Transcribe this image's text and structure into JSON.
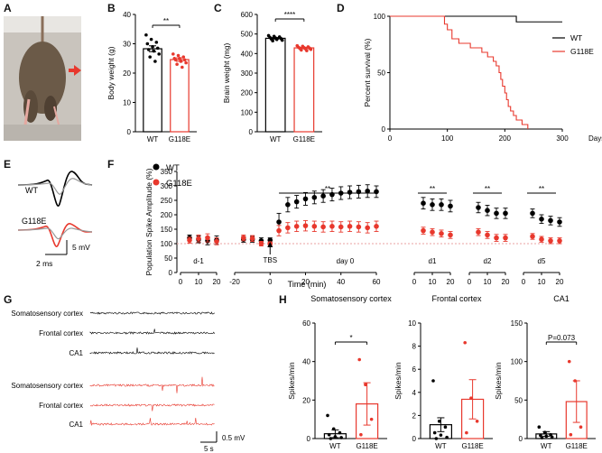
{
  "colors": {
    "wt": "#000000",
    "g118e": "#e8382d",
    "photo_bg": "#c9c4bd",
    "mouse": "#6b5a48"
  },
  "panels": {
    "A": "A",
    "B": "B",
    "C": "C",
    "D": "D",
    "E": "E",
    "F": "F",
    "G": "G",
    "H": "H"
  },
  "photo": {
    "alt": "photo of mouse held by tail with hindlimb clasping",
    "icon": "red-arrow-icon"
  },
  "chart_data": [
    {
      "id": "B",
      "type": "bar",
      "title": "",
      "ylabel": "Body weight (g)",
      "categories": [
        "WT",
        "G118E"
      ],
      "values": [
        28.3,
        24.6
      ],
      "errors": [
        1.0,
        0.6
      ],
      "ylim": [
        0,
        40
      ],
      "yticks": [
        0,
        10,
        20,
        30,
        40
      ],
      "significance": "**",
      "points": [
        [
          33,
          31.5,
          30.5,
          30,
          29,
          28.5,
          28,
          27.5,
          26.5,
          25.5,
          24
        ],
        [
          26.5,
          26,
          25.5,
          25,
          25,
          24.5,
          24.5,
          24,
          23.5,
          23,
          22
        ]
      ]
    },
    {
      "id": "C",
      "type": "bar",
      "title": "",
      "ylabel": "Brain weight (mg)",
      "categories": [
        "WT",
        "G118E"
      ],
      "values": [
        478,
        429
      ],
      "errors": [
        4,
        3
      ],
      "ylim": [
        0,
        600
      ],
      "yticks": [
        0,
        100,
        200,
        300,
        400,
        500,
        600
      ],
      "significance": "****",
      "points": [
        [
          492,
          488,
          485,
          482,
          480,
          477,
          475,
          472,
          468,
          465
        ],
        [
          440,
          437,
          434,
          432,
          430,
          428,
          426,
          424,
          421,
          418,
          415
        ]
      ]
    },
    {
      "id": "D",
      "type": "line",
      "title": "",
      "ylabel": "Percent survival (%)",
      "xlabel": "Days",
      "xlim": [
        0,
        300
      ],
      "xticks": [
        0,
        100,
        200,
        300
      ],
      "ylim": [
        0,
        100
      ],
      "yticks": [
        0,
        50,
        100
      ],
      "legend": [
        "WT",
        "G118E"
      ],
      "legend_position": "right",
      "series": [
        {
          "name": "WT",
          "x": [
            0,
            220,
            220,
            300
          ],
          "y": [
            100,
            100,
            95,
            95
          ]
        },
        {
          "name": "G118E",
          "x": [
            0,
            90,
            95,
            100,
            108,
            120,
            140,
            160,
            170,
            180,
            185,
            190,
            193,
            196,
            200,
            203,
            206,
            210,
            215,
            220,
            230,
            240
          ],
          "y": [
            100,
            100,
            93,
            88,
            80,
            76,
            72,
            68,
            64,
            60,
            56,
            50,
            44,
            38,
            32,
            26,
            20,
            16,
            12,
            8,
            4,
            0
          ]
        }
      ]
    },
    {
      "id": "F",
      "type": "scatter",
      "title": "",
      "ylabel": "Population Spike Amplitude (%)",
      "xlabel": "Time (min)",
      "legend": [
        "WT",
        "G118E"
      ],
      "legend_position": "top-left",
      "ylim": [
        0,
        350
      ],
      "yticks": [
        0,
        50,
        100,
        150,
        200,
        250,
        300,
        350
      ],
      "baseline": 100,
      "annotation": "TBS",
      "segments": [
        {
          "label": "d-1",
          "xlim": [
            0,
            20
          ],
          "xticks": [
            0,
            10,
            20
          ],
          "x": [
            5,
            10,
            15,
            20
          ],
          "wt": [
            120,
            115,
            110,
            112
          ],
          "wt_err": [
            10,
            12,
            14,
            15
          ],
          "g118e": [
            112,
            118,
            120,
            108
          ],
          "g118e_err": [
            10,
            12,
            14,
            12
          ]
        },
        {
          "label": "day 0",
          "xlim": [
            -20,
            60
          ],
          "xticks": [
            -20,
            0,
            20,
            40,
            60
          ],
          "x": [
            -15,
            -10,
            -5,
            0,
            5,
            10,
            15,
            20,
            25,
            30,
            35,
            40,
            45,
            50,
            55,
            60
          ],
          "wt": [
            115,
            115,
            110,
            112,
            175,
            235,
            245,
            255,
            260,
            265,
            270,
            275,
            278,
            280,
            282,
            280
          ],
          "wt_err": [
            10,
            10,
            10,
            8,
            30,
            25,
            22,
            22,
            22,
            22,
            22,
            22,
            22,
            22,
            22,
            20
          ],
          "g118e": [
            120,
            118,
            100,
            100,
            145,
            155,
            160,
            162,
            160,
            158,
            160,
            158,
            160,
            158,
            155,
            160
          ],
          "g118e_err": [
            10,
            10,
            8,
            6,
            18,
            18,
            18,
            18,
            18,
            18,
            18,
            18,
            18,
            18,
            18,
            18
          ]
        },
        {
          "label": "d1",
          "xlim": [
            0,
            20
          ],
          "xticks": [
            0,
            10,
            20
          ],
          "x": [
            5,
            10,
            15,
            20
          ],
          "wt": [
            240,
            235,
            235,
            230
          ],
          "wt_err": [
            20,
            20,
            20,
            20
          ],
          "g118e": [
            145,
            140,
            135,
            130
          ],
          "g118e_err": [
            12,
            12,
            12,
            12
          ]
        },
        {
          "label": "d2",
          "xlim": [
            0,
            20
          ],
          "xticks": [
            0,
            10,
            20
          ],
          "x": [
            5,
            10,
            15,
            20
          ],
          "wt": [
            225,
            215,
            205,
            205
          ],
          "wt_err": [
            18,
            18,
            18,
            18
          ],
          "g118e": [
            140,
            130,
            120,
            120
          ],
          "g118e_err": [
            12,
            12,
            12,
            12
          ]
        },
        {
          "label": "d5",
          "xlim": [
            0,
            20
          ],
          "xticks": [
            0,
            10,
            20
          ],
          "x": [
            5,
            10,
            15,
            20
          ],
          "wt": [
            205,
            185,
            180,
            175
          ],
          "wt_err": [
            15,
            15,
            15,
            15
          ],
          "g118e": [
            125,
            115,
            110,
            110
          ],
          "g118e_err": [
            10,
            10,
            10,
            10
          ]
        }
      ],
      "significance": [
        "**",
        "**",
        "**",
        "**"
      ]
    },
    {
      "id": "H1",
      "type": "bar",
      "title": "Somatosensory cortex",
      "ylabel": "Spikes/min",
      "categories": [
        "WT",
        "G118E"
      ],
      "values": [
        2.5,
        18
      ],
      "errors": [
        2,
        11
      ],
      "ylim": [
        0,
        60
      ],
      "yticks": [
        0,
        20,
        40,
        60
      ],
      "significance": "*",
      "points": [
        [
          12,
          5,
          3,
          2,
          1,
          0.5,
          0
        ],
        [
          41,
          28,
          10,
          2
        ]
      ]
    },
    {
      "id": "H2",
      "type": "bar",
      "title": "Frontal cortex",
      "ylabel": "Spikes/min",
      "categories": [
        "WT",
        "G118E"
      ],
      "values": [
        1.2,
        3.4
      ],
      "errors": [
        0.6,
        1.7
      ],
      "ylim": [
        0,
        10
      ],
      "yticks": [
        0,
        2,
        4,
        6,
        8,
        10
      ],
      "significance": "",
      "points": [
        [
          5.0,
          1.5,
          1.0,
          0.5,
          0.3,
          0.1,
          0
        ],
        [
          8.3,
          3.5,
          1.5,
          0.5
        ]
      ]
    },
    {
      "id": "H3",
      "type": "bar",
      "title": "CA1",
      "ylabel": "Spikes/min",
      "categories": [
        "WT",
        "G118E"
      ],
      "values": [
        6,
        48
      ],
      "errors": [
        3,
        27
      ],
      "ylim": [
        0,
        150
      ],
      "yticks": [
        0,
        50,
        100,
        150
      ],
      "significance": "P=0.073",
      "points": [
        [
          15,
          8,
          5,
          4,
          3,
          2,
          1
        ],
        [
          100,
          75,
          15,
          5
        ]
      ]
    }
  ],
  "legend": {
    "wt": "WT",
    "g118e": "G118E"
  },
  "panel_e": {
    "wt_label": "WT",
    "g118e_label": "G118E",
    "scale_v": "5 mV",
    "scale_t": "2 ms"
  },
  "panel_g": {
    "regions": [
      "Somatosensory cortex",
      "Frontal cortex",
      "CA1",
      "Somatosensory cortex",
      "Frontal cortex",
      "CA1"
    ],
    "scale_v": "0.5 mV",
    "scale_t": "5 s"
  }
}
